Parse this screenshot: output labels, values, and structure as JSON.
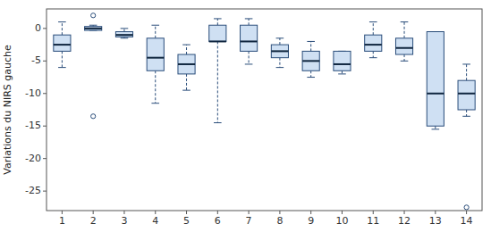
{
  "chart_data": {
    "type": "box",
    "ylabel": "Variations du NIRS gauche",
    "ylim": [
      -28,
      3
    ],
    "yticks": [
      0,
      -5,
      -10,
      -15,
      -20,
      -25
    ],
    "xlim": [
      0.5,
      14.5
    ],
    "xticks": [
      1,
      2,
      3,
      4,
      5,
      6,
      7,
      8,
      9,
      10,
      11,
      12,
      13,
      14
    ],
    "boxes": [
      {
        "x": 1,
        "q1": -3.5,
        "median": -2.5,
        "q3": -1.0,
        "whisker_low": -6.0,
        "whisker_high": 1.0,
        "outliers": []
      },
      {
        "x": 2,
        "q1": -0.3,
        "median": 0.0,
        "q3": 0.3,
        "whisker_low": -0.3,
        "whisker_high": 0.5,
        "outliers": [
          2.0,
          -13.5
        ]
      },
      {
        "x": 3,
        "q1": -1.3,
        "median": -1.0,
        "q3": -0.5,
        "whisker_low": -1.5,
        "whisker_high": 0.0,
        "outliers": []
      },
      {
        "x": 4,
        "q1": -6.5,
        "median": -4.5,
        "q3": -1.5,
        "whisker_low": -11.5,
        "whisker_high": 0.5,
        "outliers": []
      },
      {
        "x": 5,
        "q1": -7.0,
        "median": -5.5,
        "q3": -4.0,
        "whisker_low": -9.5,
        "whisker_high": -2.5,
        "outliers": []
      },
      {
        "x": 6,
        "q1": -2.0,
        "median": -2.0,
        "q3": 0.5,
        "whisker_low": -14.5,
        "whisker_high": 1.5,
        "outliers": []
      },
      {
        "x": 7,
        "q1": -3.5,
        "median": -2.0,
        "q3": 0.5,
        "whisker_low": -5.5,
        "whisker_high": 1.5,
        "outliers": []
      },
      {
        "x": 8,
        "q1": -4.5,
        "median": -3.5,
        "q3": -2.5,
        "whisker_low": -6.0,
        "whisker_high": -1.5,
        "outliers": []
      },
      {
        "x": 9,
        "q1": -6.5,
        "median": -5.0,
        "q3": -3.5,
        "whisker_low": -7.5,
        "whisker_high": -2.0,
        "outliers": []
      },
      {
        "x": 10,
        "q1": -6.5,
        "median": -5.5,
        "q3": -3.5,
        "whisker_low": -7.0,
        "whisker_high": -3.5,
        "outliers": []
      },
      {
        "x": 11,
        "q1": -3.5,
        "median": -2.5,
        "q3": -1.0,
        "whisker_low": -4.5,
        "whisker_high": 1.0,
        "outliers": []
      },
      {
        "x": 12,
        "q1": -4.0,
        "median": -3.0,
        "q3": -1.5,
        "whisker_low": -5.0,
        "whisker_high": 1.0,
        "outliers": []
      },
      {
        "x": 13,
        "q1": -15.0,
        "median": -10.0,
        "q3": -0.5,
        "whisker_low": -15.5,
        "whisker_high": -0.5,
        "outliers": []
      },
      {
        "x": 14,
        "q1": -12.5,
        "median": -10.0,
        "q3": -8.0,
        "whisker_low": -13.5,
        "whisker_high": -5.5,
        "outliers": [
          -27.5
        ]
      }
    ]
  }
}
